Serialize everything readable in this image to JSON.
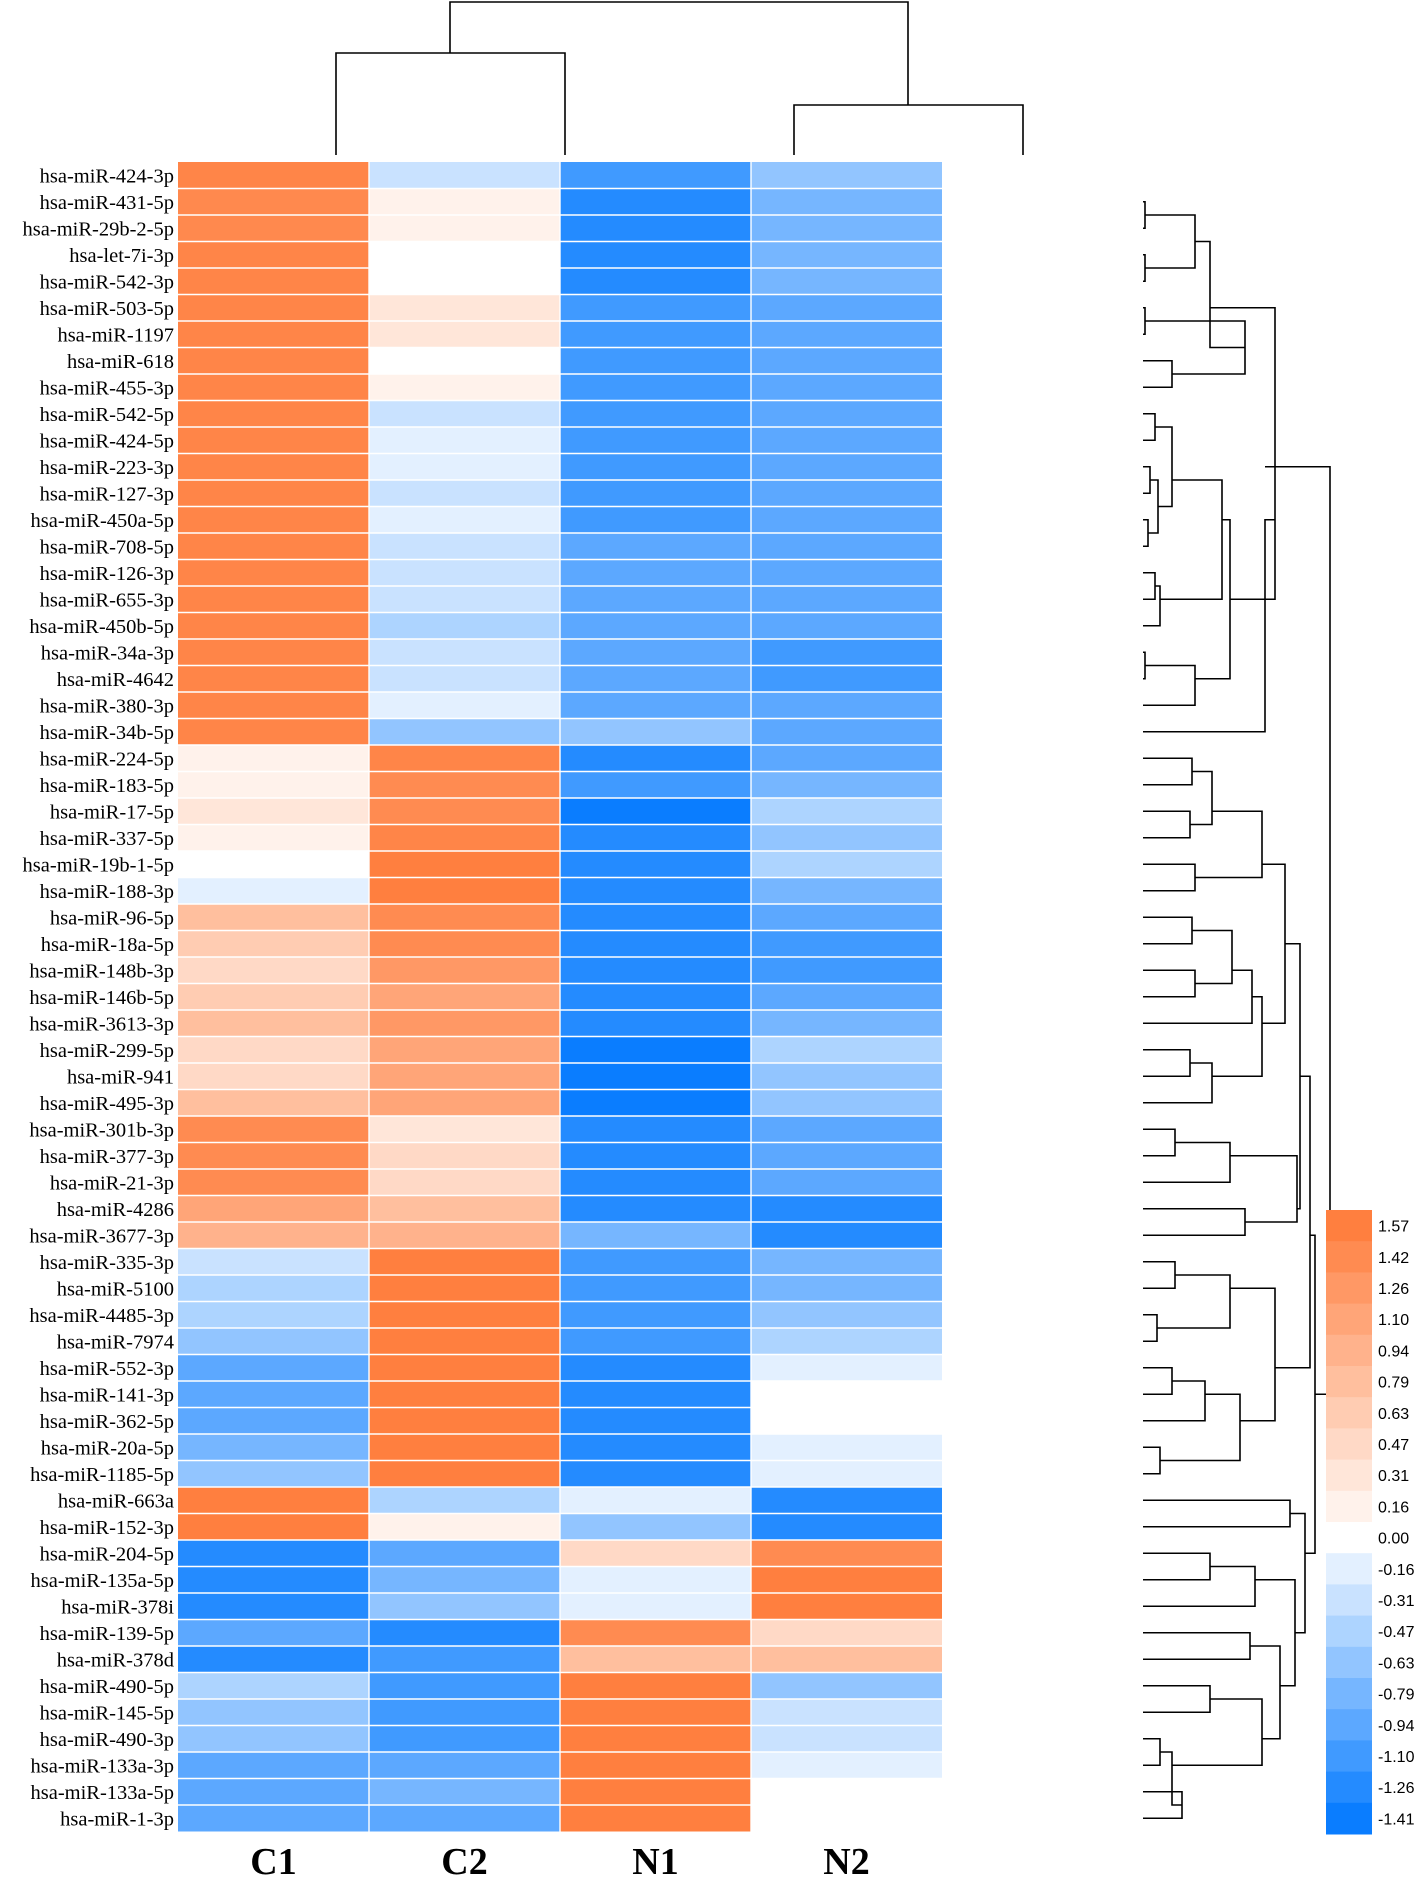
{
  "chart_data": {
    "type": "heatmap",
    "title": "",
    "columns": [
      "C1",
      "C2",
      "N1",
      "N2"
    ],
    "rows": [
      "hsa-miR-424-3p",
      "hsa-miR-431-5p",
      "hsa-miR-29b-2-5p",
      "hsa-let-7i-3p",
      "hsa-miR-542-3p",
      "hsa-miR-503-5p",
      "hsa-miR-1197",
      "hsa-miR-618",
      "hsa-miR-455-3p",
      "hsa-miR-542-5p",
      "hsa-miR-424-5p",
      "hsa-miR-223-3p",
      "hsa-miR-127-3p",
      "hsa-miR-450a-5p",
      "hsa-miR-708-5p",
      "hsa-miR-126-3p",
      "hsa-miR-655-3p",
      "hsa-miR-450b-5p",
      "hsa-miR-34a-3p",
      "hsa-miR-4642",
      "hsa-miR-380-3p",
      "hsa-miR-34b-5p",
      "hsa-miR-224-5p",
      "hsa-miR-183-5p",
      "hsa-miR-17-5p",
      "hsa-miR-337-5p",
      "hsa-miR-19b-1-5p",
      "hsa-miR-188-3p",
      "hsa-miR-96-5p",
      "hsa-miR-18a-5p",
      "hsa-miR-148b-3p",
      "hsa-miR-146b-5p",
      "hsa-miR-3613-3p",
      "hsa-miR-299-5p",
      "hsa-miR-941",
      "hsa-miR-495-3p",
      "hsa-miR-301b-3p",
      "hsa-miR-377-3p",
      "hsa-miR-21-3p",
      "hsa-miR-4286",
      "hsa-miR-3677-3p",
      "hsa-miR-335-3p",
      "hsa-miR-5100",
      "hsa-miR-4485-3p",
      "hsa-miR-7974",
      "hsa-miR-552-3p",
      "hsa-miR-141-3p",
      "hsa-miR-362-5p",
      "hsa-miR-20a-5p",
      "hsa-miR-1185-5p",
      "hsa-miR-663a",
      "hsa-miR-152-3p",
      "hsa-miR-204-5p",
      "hsa-miR-135a-5p",
      "hsa-miR-378i",
      "hsa-miR-139-5p",
      "hsa-miR-378d",
      "hsa-miR-490-5p",
      "hsa-miR-145-5p",
      "hsa-miR-490-3p",
      "hsa-miR-133a-3p",
      "hsa-miR-133a-5p",
      "hsa-miR-1-3p"
    ],
    "values": [
      [
        1.5,
        -0.31,
        -1.1,
        -0.63
      ],
      [
        1.45,
        0.16,
        -1.26,
        -0.79
      ],
      [
        1.45,
        0.16,
        -1.26,
        -0.79
      ],
      [
        1.5,
        0.0,
        -1.26,
        -0.79
      ],
      [
        1.5,
        0.0,
        -1.26,
        -0.79
      ],
      [
        1.5,
        0.31,
        -1.1,
        -0.94
      ],
      [
        1.5,
        0.31,
        -1.1,
        -0.94
      ],
      [
        1.5,
        0.0,
        -1.1,
        -0.94
      ],
      [
        1.5,
        0.16,
        -1.1,
        -0.94
      ],
      [
        1.5,
        -0.31,
        -1.1,
        -0.94
      ],
      [
        1.5,
        -0.16,
        -1.1,
        -0.94
      ],
      [
        1.5,
        -0.16,
        -1.1,
        -0.94
      ],
      [
        1.5,
        -0.31,
        -1.1,
        -0.94
      ],
      [
        1.5,
        -0.16,
        -1.1,
        -0.94
      ],
      [
        1.5,
        -0.31,
        -0.94,
        -0.94
      ],
      [
        1.5,
        -0.31,
        -0.94,
        -0.94
      ],
      [
        1.5,
        -0.31,
        -0.94,
        -0.94
      ],
      [
        1.5,
        -0.47,
        -0.94,
        -0.94
      ],
      [
        1.5,
        -0.31,
        -0.94,
        -1.1
      ],
      [
        1.5,
        -0.31,
        -0.94,
        -1.1
      ],
      [
        1.5,
        -0.16,
        -0.94,
        -0.94
      ],
      [
        1.5,
        -0.63,
        -0.63,
        -0.94
      ],
      [
        0.16,
        1.5,
        -1.26,
        -0.94
      ],
      [
        0.16,
        1.42,
        -1.1,
        -0.79
      ],
      [
        0.31,
        1.42,
        -1.41,
        -0.47
      ],
      [
        0.16,
        1.5,
        -1.26,
        -0.63
      ],
      [
        0.0,
        1.57,
        -1.26,
        -0.47
      ],
      [
        -0.16,
        1.57,
        -1.26,
        -0.79
      ],
      [
        0.79,
        1.42,
        -1.26,
        -0.94
      ],
      [
        0.63,
        1.42,
        -1.26,
        -1.1
      ],
      [
        0.47,
        1.26,
        -1.26,
        -1.1
      ],
      [
        0.63,
        1.1,
        -1.26,
        -0.94
      ],
      [
        0.79,
        1.26,
        -1.26,
        -0.79
      ],
      [
        0.47,
        1.1,
        -1.41,
        -0.47
      ],
      [
        0.47,
        1.1,
        -1.41,
        -0.63
      ],
      [
        0.79,
        1.1,
        -1.41,
        -0.63
      ],
      [
        1.42,
        0.31,
        -1.26,
        -0.94
      ],
      [
        1.42,
        0.47,
        -1.26,
        -0.94
      ],
      [
        1.42,
        0.47,
        -1.26,
        -0.94
      ],
      [
        1.1,
        0.79,
        -1.26,
        -1.26
      ],
      [
        0.94,
        0.94,
        -0.79,
        -1.26
      ],
      [
        -0.31,
        1.57,
        -1.1,
        -0.79
      ],
      [
        -0.47,
        1.57,
        -1.1,
        -0.79
      ],
      [
        -0.47,
        1.57,
        -1.1,
        -0.63
      ],
      [
        -0.63,
        1.57,
        -1.1,
        -0.47
      ],
      [
        -0.94,
        1.57,
        -1.26,
        -0.16
      ],
      [
        -0.94,
        1.57,
        -1.26,
        0.0
      ],
      [
        -0.94,
        1.57,
        -1.26,
        0.0
      ],
      [
        -0.79,
        1.57,
        -1.26,
        -0.16
      ],
      [
        -0.63,
        1.57,
        -1.26,
        -0.16
      ],
      [
        1.57,
        -0.47,
        -0.16,
        -1.26
      ],
      [
        1.57,
        0.16,
        -0.63,
        -1.26
      ],
      [
        -1.26,
        -0.94,
        0.47,
        1.42
      ],
      [
        -1.26,
        -0.79,
        -0.16,
        1.57
      ],
      [
        -1.26,
        -0.63,
        -0.16,
        1.57
      ],
      [
        -0.94,
        -1.26,
        1.42,
        0.47
      ],
      [
        -1.26,
        -1.1,
        0.79,
        0.79
      ],
      [
        -0.47,
        -1.1,
        1.57,
        -0.63
      ],
      [
        -0.63,
        -1.1,
        1.57,
        -0.31
      ],
      [
        -0.63,
        -1.1,
        1.57,
        -0.31
      ],
      [
        -0.94,
        -0.94,
        1.57,
        -0.16
      ],
      [
        -0.94,
        -0.79,
        1.57,
        0.0
      ],
      [
        -0.94,
        -0.94,
        1.57,
        0.0
      ]
    ],
    "legend": {
      "ticks": [
        "1.57",
        "1.42",
        "1.26",
        "1.10",
        "0.94",
        "0.79",
        "0.63",
        "0.47",
        "0.31",
        "0.16",
        "0.00",
        "-0.16",
        "-0.31",
        "-0.47",
        "-0.63",
        "-0.79",
        "-0.94",
        "-1.10",
        "-1.26",
        "-1.41"
      ],
      "range": [
        -1.41,
        1.57
      ],
      "high_color": "#ff7f3f",
      "mid_color": "#ffffff",
      "low_color": "#0a7dff",
      "placement": "right"
    },
    "column_dendrogram": [
      [
        "C1",
        "C2"
      ],
      [
        "N1",
        "N2"
      ]
    ],
    "row_dendrogram": "shown on right"
  }
}
